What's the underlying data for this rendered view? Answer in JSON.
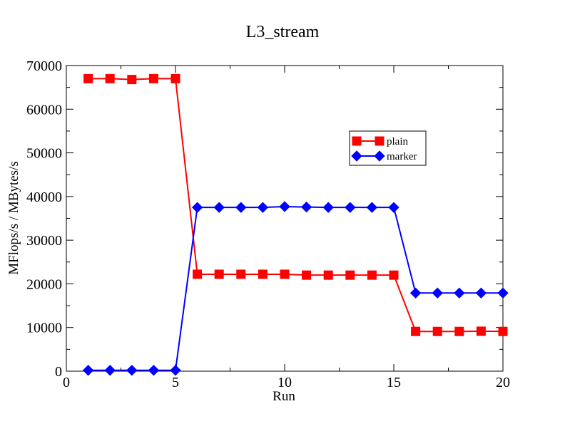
{
  "chart_data": {
    "type": "line",
    "title": "L3_stream",
    "xlabel": "Run",
    "ylabel": "MFlops/s / MBytes/s",
    "xlim": [
      0,
      20
    ],
    "ylim": [
      0,
      70000
    ],
    "x_ticks": [
      0,
      5,
      10,
      15,
      20
    ],
    "y_ticks": [
      0,
      10000,
      20000,
      30000,
      40000,
      50000,
      60000,
      70000
    ],
    "x_tick_labels": [
      "0",
      "5",
      "10",
      "15",
      "20"
    ],
    "y_tick_labels": [
      "0",
      "10000",
      "20000",
      "30000",
      "40000",
      "50000",
      "60000",
      "70000"
    ],
    "grid": false,
    "legend_position": "upper-right, inside plot",
    "x": [
      1,
      2,
      3,
      4,
      5,
      6,
      7,
      8,
      9,
      10,
      11,
      12,
      13,
      14,
      15,
      16,
      17,
      18,
      19,
      20
    ],
    "series": [
      {
        "name": "plain",
        "color": "#ff0000",
        "marker": "square",
        "values": [
          67000,
          67000,
          66800,
          67000,
          67000,
          22200,
          22200,
          22200,
          22200,
          22200,
          22000,
          22000,
          22000,
          22000,
          22000,
          9100,
          9100,
          9100,
          9150,
          9100
        ]
      },
      {
        "name": "marker",
        "color": "#0000ff",
        "marker": "diamond",
        "values": [
          200,
          200,
          200,
          200,
          200,
          37500,
          37500,
          37500,
          37500,
          37700,
          37600,
          37500,
          37500,
          37500,
          37500,
          17900,
          17900,
          17900,
          17900,
          17900
        ]
      }
    ]
  }
}
